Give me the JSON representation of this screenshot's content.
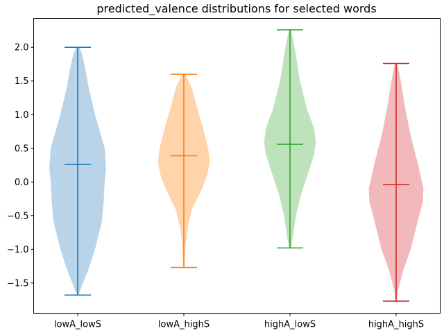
{
  "chart_data": {
    "type": "violin",
    "title": "predicted_valence distributions for selected words",
    "xlabel": "",
    "ylabel": "",
    "ylim": [
      -1.95,
      2.43
    ],
    "yticks": [
      2.0,
      1.5,
      1.0,
      0.5,
      0.0,
      -0.5,
      -1.0,
      -1.5
    ],
    "ytick_labels": [
      "2.0",
      "1.5",
      "1.0",
      "0.5",
      "0.0",
      "−0.5",
      "−1.0",
      "−1.5"
    ],
    "categories": [
      "lowA_lowS",
      "lowA_highS",
      "highA_lowS",
      "highA_highS"
    ],
    "grid": false,
    "legend": "none",
    "series": [
      {
        "category": "lowA_lowS",
        "color": "#1f77b4",
        "fill": "#b9d3e8",
        "min": -1.68,
        "max": 2.0,
        "mean": 0.26,
        "density": [
          [
            -1.68,
            0.03
          ],
          [
            -1.55,
            0.12
          ],
          [
            -1.3,
            0.32
          ],
          [
            -1.0,
            0.52
          ],
          [
            -0.6,
            0.72
          ],
          [
            -0.3,
            0.78
          ],
          [
            0.0,
            0.81
          ],
          [
            0.2,
            0.85
          ],
          [
            0.5,
            0.81
          ],
          [
            1.0,
            0.52
          ],
          [
            1.4,
            0.33
          ],
          [
            1.7,
            0.22
          ],
          [
            1.9,
            0.13
          ],
          [
            2.0,
            0.05
          ]
        ]
      },
      {
        "category": "lowA_highS",
        "color": "#ff7f0e",
        "fill": "#ffd4aa",
        "min": -1.27,
        "max": 1.6,
        "mean": 0.39,
        "density": [
          [
            -1.27,
            0.02
          ],
          [
            -1.0,
            0.04
          ],
          [
            -0.7,
            0.1
          ],
          [
            -0.4,
            0.25
          ],
          [
            -0.1,
            0.55
          ],
          [
            0.1,
            0.7
          ],
          [
            0.3,
            0.78
          ],
          [
            0.5,
            0.73
          ],
          [
            0.8,
            0.58
          ],
          [
            1.1,
            0.4
          ],
          [
            1.4,
            0.24
          ],
          [
            1.6,
            0.05
          ]
        ]
      },
      {
        "category": "highA_lowS",
        "color": "#2ca02c",
        "fill": "#bee3bc",
        "min": -0.98,
        "max": 2.26,
        "mean": 0.56,
        "density": [
          [
            -0.98,
            0.03
          ],
          [
            -0.8,
            0.09
          ],
          [
            -0.5,
            0.18
          ],
          [
            -0.2,
            0.32
          ],
          [
            0.1,
            0.52
          ],
          [
            0.4,
            0.72
          ],
          [
            0.6,
            0.78
          ],
          [
            0.8,
            0.72
          ],
          [
            1.1,
            0.5
          ],
          [
            1.5,
            0.3
          ],
          [
            1.9,
            0.17
          ],
          [
            2.1,
            0.1
          ],
          [
            2.26,
            0.03
          ]
        ]
      },
      {
        "category": "highA_highS",
        "color": "#d62728",
        "fill": "#f2b9ba",
        "min": -1.77,
        "max": 1.76,
        "mean": -0.04,
        "density": [
          [
            -1.77,
            0.02
          ],
          [
            -1.6,
            0.06
          ],
          [
            -1.3,
            0.22
          ],
          [
            -1.0,
            0.44
          ],
          [
            -0.6,
            0.64
          ],
          [
            -0.3,
            0.8
          ],
          [
            -0.1,
            0.82
          ],
          [
            0.3,
            0.64
          ],
          [
            0.7,
            0.43
          ],
          [
            1.1,
            0.27
          ],
          [
            1.5,
            0.14
          ],
          [
            1.76,
            0.04
          ]
        ]
      }
    ]
  }
}
